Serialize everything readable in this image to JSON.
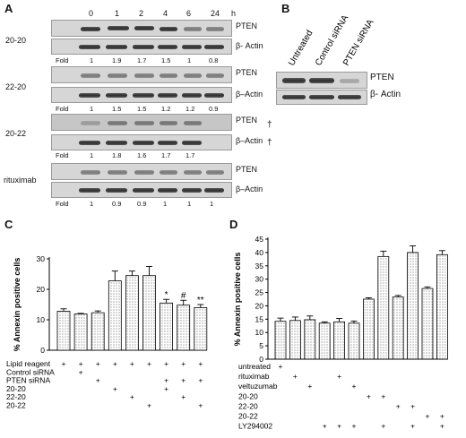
{
  "panelA": {
    "letter": "A",
    "time_points": [
      "0",
      "1",
      "2",
      "4",
      "6",
      "24"
    ],
    "time_unit": "h",
    "fold_label": "Fold",
    "groups": [
      {
        "name": "20-20",
        "pten": "PTEN",
        "actin": "β- Actin",
        "folds": [
          "1",
          "1.9",
          "1.7",
          "1.5",
          "1",
          "0.8"
        ],
        "dagger": false
      },
      {
        "name": "22-20",
        "pten": "PTEN",
        "actin": "β–Actin",
        "folds": [
          "1",
          "1.5",
          "1.5",
          "1.2",
          "1.2",
          "0.9"
        ],
        "dagger": false
      },
      {
        "name": "20-22",
        "pten": "PTEN",
        "actin": "β–Actin",
        "folds": [
          "1",
          "1.8",
          "1.6",
          "1.7",
          "1.7"
        ],
        "dagger": true,
        "dagger_symbol": "†"
      },
      {
        "name": "rituximab",
        "pten": "PTEN",
        "actin": "β–Actin",
        "folds": [
          "1",
          "0.9",
          "0.9",
          "1",
          "1",
          "1"
        ],
        "dagger": false
      }
    ]
  },
  "panelB": {
    "letter": "B",
    "lanes": [
      "Untreated",
      "Control siRNA",
      "PTEN siRNA"
    ],
    "pten": "PTEN",
    "actin": "β- Actin"
  },
  "panelC": {
    "letter": "C",
    "ylabel": "% Annexin positive cells",
    "yticks": [
      "0",
      "10",
      "20",
      "30"
    ],
    "marks": [
      "*",
      "#",
      "**"
    ],
    "row_labels": [
      "Lipid reagent",
      "Control siRNA",
      "PTEN siRNA",
      "20-20",
      "22-20",
      "20-22"
    ],
    "plus": "+"
  },
  "panelD": {
    "letter": "D",
    "ylabel": "% Annexin positive cells",
    "yticks": [
      "0",
      "5",
      "10",
      "15",
      "20",
      "25",
      "30",
      "35",
      "40",
      "45"
    ],
    "row_labels": [
      "untreated",
      "rituximab",
      "veltuzumab",
      "20-20",
      "22-20",
      "20-22",
      "LY294002"
    ],
    "plus": "+"
  },
  "chart_data": [
    {
      "type": "bar",
      "ylabel": "% Annexin positive cells",
      "ylim": [
        0,
        30
      ],
      "yticks": [
        0,
        10,
        20,
        30
      ],
      "categories": [
        "1",
        "2",
        "3",
        "4",
        "5",
        "6",
        "7",
        "8",
        "9"
      ],
      "values": [
        12.8,
        11.9,
        12.3,
        22.8,
        24.5,
        24.5,
        15.5,
        14.8,
        14.0
      ],
      "errors": [
        0.8,
        0.2,
        0.6,
        3.2,
        1.5,
        3.0,
        1.2,
        1.6,
        1.0
      ],
      "annotations": [
        "",
        "",
        "",
        "",
        "",
        "",
        "*",
        "#",
        "**"
      ],
      "treatment_matrix": [
        [
          1,
          1,
          1,
          1,
          1,
          1,
          1,
          1,
          1
        ],
        [
          0,
          1,
          0,
          0,
          0,
          0,
          0,
          0,
          0
        ],
        [
          0,
          0,
          1,
          0,
          0,
          0,
          1,
          1,
          1
        ],
        [
          0,
          0,
          0,
          1,
          0,
          0,
          1,
          0,
          0
        ],
        [
          0,
          0,
          0,
          0,
          1,
          0,
          0,
          1,
          0
        ],
        [
          0,
          0,
          0,
          0,
          0,
          1,
          0,
          0,
          1
        ]
      ]
    },
    {
      "type": "bar",
      "ylabel": "% Annexin positive cells",
      "ylim": [
        0,
        45
      ],
      "yticks": [
        0,
        5,
        10,
        15,
        20,
        25,
        30,
        35,
        40,
        45
      ],
      "categories": [
        "1",
        "2",
        "3",
        "4",
        "5",
        "6",
        "7",
        "8",
        "9",
        "10",
        "11",
        "12"
      ],
      "values": [
        14.2,
        14.5,
        14.8,
        13.5,
        14.0,
        13.5,
        22.5,
        38.5,
        23.3,
        40.0,
        26.5,
        39.2
      ],
      "errors": [
        1.2,
        1.3,
        1.4,
        0.5,
        1.3,
        0.8,
        0.5,
        2.0,
        0.6,
        2.5,
        0.6,
        1.5
      ],
      "treatment_matrix": [
        [
          1,
          0,
          0,
          0,
          0,
          0,
          0,
          0,
          0,
          0,
          0,
          0
        ],
        [
          0,
          1,
          0,
          0,
          1,
          0,
          0,
          0,
          0,
          0,
          0,
          0
        ],
        [
          0,
          0,
          1,
          0,
          0,
          1,
          0,
          0,
          0,
          0,
          0,
          0
        ],
        [
          0,
          0,
          0,
          0,
          0,
          0,
          1,
          1,
          0,
          0,
          0,
          0
        ],
        [
          0,
          0,
          0,
          0,
          0,
          0,
          0,
          0,
          1,
          1,
          0,
          0
        ],
        [
          0,
          0,
          0,
          0,
          0,
          0,
          0,
          0,
          0,
          0,
          1,
          1
        ],
        [
          0,
          0,
          0,
          1,
          1,
          1,
          0,
          1,
          0,
          1,
          0,
          1
        ]
      ]
    }
  ]
}
